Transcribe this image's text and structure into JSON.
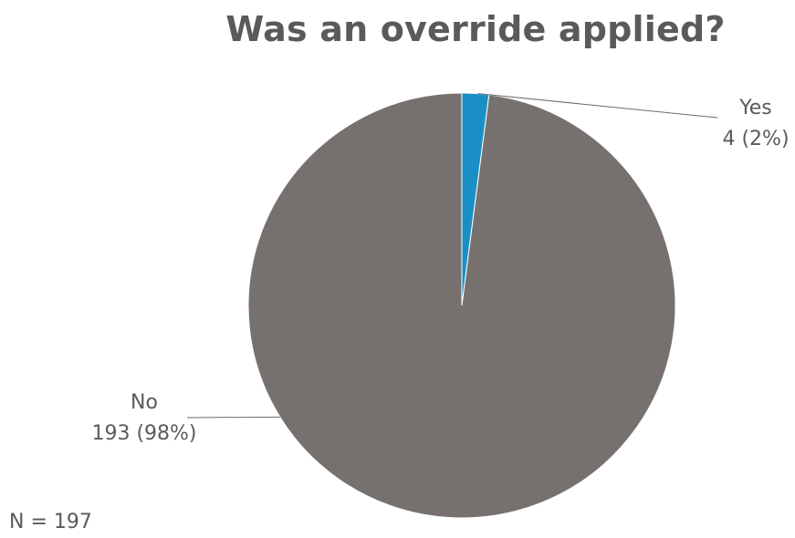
{
  "chart_data": {
    "type": "pie",
    "title": "Was an override applied?",
    "slices": [
      {
        "name": "Yes",
        "value": 4,
        "value_label": "4 (2%)",
        "color": "#1a8fc6"
      },
      {
        "name": "No",
        "value": 193,
        "value_label": "193 (98%)",
        "color": "#76716e"
      }
    ],
    "legend": "none",
    "footnote": "N = 197"
  }
}
